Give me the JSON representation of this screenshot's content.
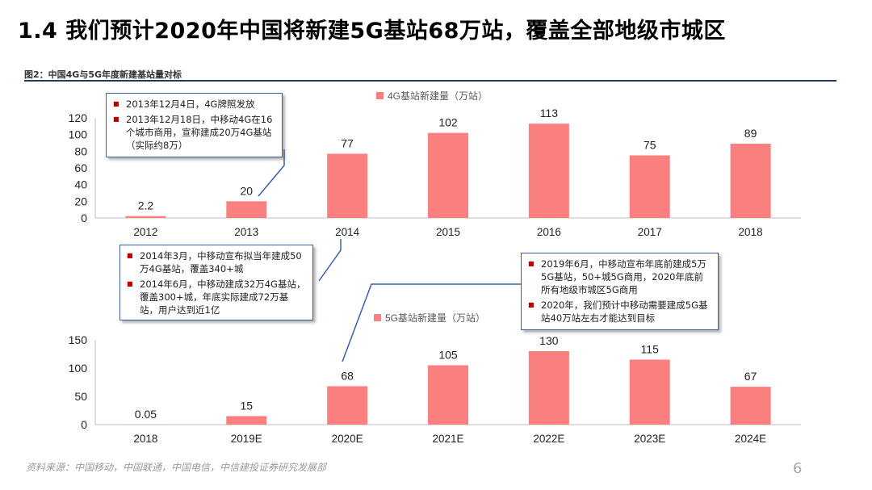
{
  "title": "1.4  我们预计2020年中国将新建5G基站68万站，覆盖全部地级市城区",
  "figure_label": "图2：中国4G与5G年度新建基站量对标",
  "source": "资料来源：中国移动，中国联通，中国电信，中信建投证券研究发展部",
  "page_number": "6",
  "colors": {
    "bar": "#fa7f7f",
    "axis": "#bfbfbf",
    "callout_border": "#3b5ea8",
    "bullet": "#c00000"
  },
  "callouts": {
    "c2013": [
      "2013年12月4日，4G牌照发放",
      "2013年12月18日，中移动4G在16个城市商用，宣称建成20万4G基站（实际约8万）"
    ],
    "c2014": [
      "2014年3月，中移动宣布拟当年建成50万4G基站，覆盖340+城",
      "2014年6月，中移动建成32万4G基站，覆盖300+城，年底实际建成72万基站，用户达到近1亿"
    ],
    "c2020": [
      "2019年6月，中移动宣布年底前建成5万5G基站，50+城5G商用，2020年底前所有地级市城区5G商用",
      "2020年，我们预计中移动需要建成5G基站40万站左右才能达到目标"
    ]
  },
  "chart_data": [
    {
      "type": "bar",
      "title": "4G基站新建量（万站）",
      "legend": "4G基站新建量（万站）",
      "categories": [
        "2012",
        "2013",
        "2014",
        "2015",
        "2016",
        "2017",
        "2018"
      ],
      "values": [
        2.2,
        20,
        77,
        102,
        113,
        75,
        89
      ],
      "data_labels": [
        "2.2",
        "20",
        "77",
        "102",
        "113",
        "75",
        "89"
      ],
      "ylim": [
        0,
        120
      ],
      "yticks": [
        0,
        20,
        40,
        60,
        80,
        100,
        120
      ],
      "legend_position": "top-center"
    },
    {
      "type": "bar",
      "title": "5G基站新建量（万站）",
      "legend": "5G基站新建量（万站）",
      "categories": [
        "2018",
        "2019E",
        "2020E",
        "2021E",
        "2022E",
        "2023E",
        "2024E"
      ],
      "values": [
        0.05,
        15,
        68,
        105,
        130,
        115,
        67
      ],
      "data_labels": [
        "0.05",
        "15",
        "68",
        "105",
        "130",
        "115",
        "67"
      ],
      "ylim": [
        0,
        150
      ],
      "yticks": [
        0,
        50,
        100,
        150
      ],
      "legend_position": "top-center"
    }
  ]
}
